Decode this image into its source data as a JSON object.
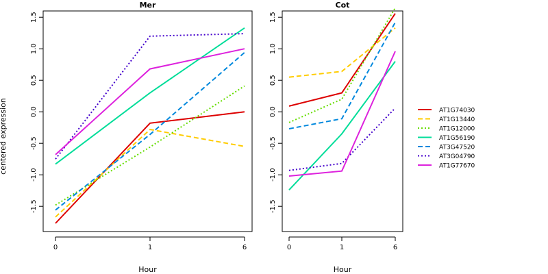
{
  "chart_data": [
    {
      "type": "line",
      "title": "Mer",
      "xlabel": "Hour",
      "ylabel": "centered expression",
      "categories": [
        "0",
        "1",
        "6"
      ],
      "ylim": [
        -1.9,
        1.6
      ],
      "yticks": [
        "-1.5",
        "-1.0",
        "-0.5",
        "0.0",
        "0.5",
        "1.0",
        "1.5"
      ],
      "series": [
        {
          "name": "AT1G74030",
          "color": "#dd0000",
          "dash": "solid",
          "values": [
            -1.77,
            -0.18,
            0.0
          ]
        },
        {
          "name": "AT1G13440",
          "color": "#ffcc00",
          "dash": "dashed",
          "values": [
            -1.67,
            -0.28,
            -0.55
          ]
        },
        {
          "name": "AT1G12000",
          "color": "#66dd00",
          "dash": "dotted",
          "values": [
            -1.48,
            -0.56,
            0.41
          ]
        },
        {
          "name": "AT1G56190",
          "color": "#00dd99",
          "dash": "solid",
          "values": [
            -0.83,
            0.3,
            1.33
          ]
        },
        {
          "name": "AT3G47520",
          "color": "#0088dd",
          "dash": "dashed",
          "values": [
            -1.56,
            -0.36,
            0.94
          ]
        },
        {
          "name": "AT3G04790",
          "color": "#4400cc",
          "dash": "dotted",
          "values": [
            -0.75,
            1.2,
            1.24
          ]
        },
        {
          "name": "AT1G77670",
          "color": "#dd22dd",
          "dash": "solid",
          "values": [
            -0.68,
            0.68,
            1.0
          ]
        }
      ]
    },
    {
      "type": "line",
      "title": "Cot",
      "xlabel": "Hour",
      "ylabel": "",
      "categories": [
        "0",
        "1",
        "6"
      ],
      "ylim": [
        -1.9,
        1.6
      ],
      "yticks": [
        "-1.5",
        "-1.0",
        "-0.5",
        "0.0",
        "0.5",
        "1.0",
        "1.5"
      ],
      "series": [
        {
          "name": "AT1G74030",
          "color": "#dd0000",
          "dash": "solid",
          "values": [
            0.09,
            0.3,
            1.56
          ]
        },
        {
          "name": "AT1G13440",
          "color": "#ffcc00",
          "dash": "dashed",
          "values": [
            0.55,
            0.64,
            1.33
          ]
        },
        {
          "name": "AT1G12000",
          "color": "#66dd00",
          "dash": "dotted",
          "values": [
            -0.17,
            0.2,
            1.65
          ]
        },
        {
          "name": "AT1G56190",
          "color": "#00dd99",
          "dash": "solid",
          "values": [
            -1.24,
            -0.35,
            0.8
          ]
        },
        {
          "name": "AT3G47520",
          "color": "#0088dd",
          "dash": "dashed",
          "values": [
            -0.27,
            -0.11,
            1.42
          ]
        },
        {
          "name": "AT3G04790",
          "color": "#4400cc",
          "dash": "dotted",
          "values": [
            -0.93,
            -0.82,
            0.06
          ]
        },
        {
          "name": "AT1G77670",
          "color": "#dd22dd",
          "dash": "solid",
          "values": [
            -1.02,
            -0.94,
            0.96
          ]
        }
      ]
    }
  ],
  "legend": {
    "position": "right",
    "entries": [
      {
        "label": "AT1G74030",
        "color": "#dd0000",
        "dash": "solid"
      },
      {
        "label": "AT1G13440",
        "color": "#ffcc00",
        "dash": "dashed"
      },
      {
        "label": "AT1G12000",
        "color": "#66dd00",
        "dash": "dotted"
      },
      {
        "label": "AT1G56190",
        "color": "#00dd99",
        "dash": "solid"
      },
      {
        "label": "AT3G47520",
        "color": "#0088dd",
        "dash": "dashed"
      },
      {
        "label": "AT3G04790",
        "color": "#4400cc",
        "dash": "dotted"
      },
      {
        "label": "AT1G77670",
        "color": "#dd22dd",
        "dash": "solid"
      }
    ]
  }
}
